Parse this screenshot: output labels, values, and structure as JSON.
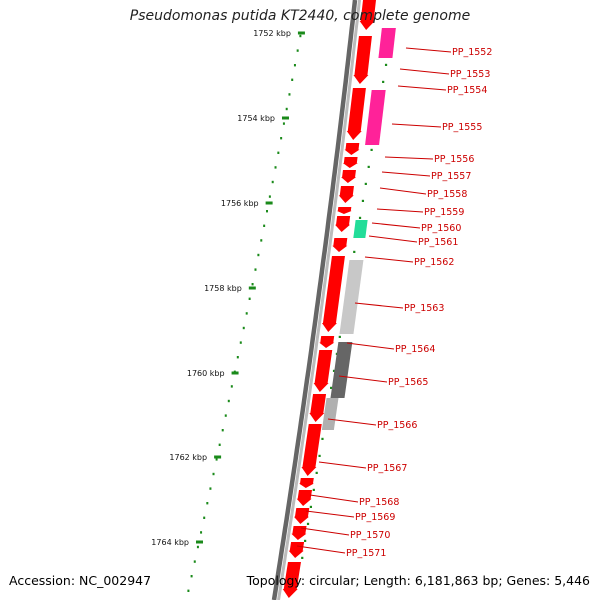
{
  "title": "Pseudomonas putida KT2440, complete genome",
  "footer": {
    "accession": "Accession: NC_002947",
    "topology": "Topology: circular; Length: 6,181,863 bp; Genes: 5,446"
  },
  "scale": {
    "unit": "kbp",
    "ticks": [
      {
        "label": "1752 kbp"
      },
      {
        "label": "1754 kbp"
      },
      {
        "label": "1756 kbp"
      },
      {
        "label": "1758 kbp"
      },
      {
        "label": "1760 kbp"
      },
      {
        "label": "1762 kbp"
      },
      {
        "label": "1764 kbp"
      }
    ]
  },
  "colors": {
    "cds": "#ff0000",
    "label": "#cc0000",
    "tick": "#1a8a1a",
    "backbone_outer": "#666666",
    "backbone_inner": "#bbbbbb",
    "magenta": "#ff2299",
    "teal": "#22dd99",
    "light_gray": "#c8c8c8",
    "mid_gray": "#b0b0b0",
    "dark_gray": "#666666"
  },
  "genes": [
    {
      "label": "PP_1552"
    },
    {
      "label": "PP_1553"
    },
    {
      "label": "PP_1554"
    },
    {
      "label": "PP_1555"
    },
    {
      "label": "PP_1556"
    },
    {
      "label": "PP_1557"
    },
    {
      "label": "PP_1558"
    },
    {
      "label": "PP_1559"
    },
    {
      "label": "PP_1560"
    },
    {
      "label": "PP_1561"
    },
    {
      "label": "PP_1562"
    },
    {
      "label": "PP_1563"
    },
    {
      "label": "PP_1564"
    },
    {
      "label": "PP_1565"
    },
    {
      "label": "PP_1566"
    },
    {
      "label": "PP_1567"
    },
    {
      "label": "PP_1568"
    },
    {
      "label": "PP_1569"
    },
    {
      "label": "PP_1570"
    },
    {
      "label": "PP_1571"
    }
  ]
}
